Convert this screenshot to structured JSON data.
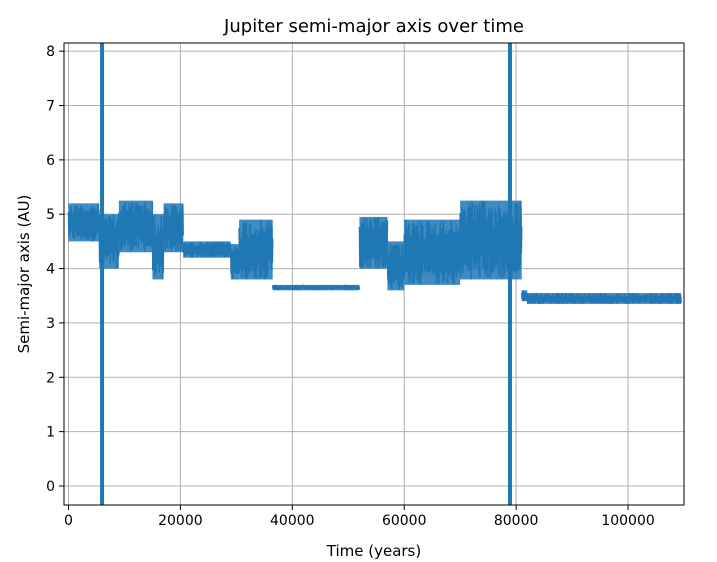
{
  "chart_data": {
    "type": "line",
    "title": "Jupiter semi-major axis over time",
    "xlabel": "Time (years)",
    "ylabel": "Semi-major axis (AU)",
    "xlim": [
      -800,
      110000
    ],
    "ylim": [
      -0.35,
      8.15
    ],
    "grid": true,
    "line_color": "#1f77b4",
    "xticks": [
      0,
      20000,
      40000,
      60000,
      80000,
      100000
    ],
    "yticks": [
      0,
      1,
      2,
      3,
      4,
      5,
      6,
      7,
      8
    ],
    "series": [
      {
        "name": "",
        "segments": [
          {
            "x0": 0,
            "x1": 5500,
            "low": 4.5,
            "high": 5.2
          },
          {
            "x0": 5500,
            "x1": 9000,
            "low": 4.0,
            "high": 5.0
          },
          {
            "x0": 9000,
            "x1": 15000,
            "low": 4.3,
            "high": 5.25
          },
          {
            "x0": 15000,
            "x1": 17000,
            "low": 3.8,
            "high": 5.0
          },
          {
            "x0": 17000,
            "x1": 20500,
            "low": 4.3,
            "high": 5.2
          },
          {
            "x0": 20500,
            "x1": 29000,
            "low": 4.2,
            "high": 4.5
          },
          {
            "x0": 29000,
            "x1": 30500,
            "low": 3.8,
            "high": 4.45
          },
          {
            "x0": 30500,
            "x1": 36500,
            "low": 3.8,
            "high": 4.9
          },
          {
            "x0": 36500,
            "x1": 52000,
            "low": 3.6,
            "high": 3.7
          },
          {
            "x0": 52000,
            "x1": 57000,
            "low": 4.0,
            "high": 4.95
          },
          {
            "x0": 57000,
            "x1": 60000,
            "low": 3.6,
            "high": 4.5
          },
          {
            "x0": 60000,
            "x1": 70000,
            "low": 3.7,
            "high": 4.9
          },
          {
            "x0": 70000,
            "x1": 81000,
            "low": 3.8,
            "high": 5.25
          },
          {
            "x0": 81000,
            "x1": 82000,
            "low": 3.4,
            "high": 3.6
          },
          {
            "x0": 82000,
            "x1": 109500,
            "low": 3.35,
            "high": 3.55
          }
        ],
        "spikes": [
          {
            "x": 6000,
            "low": -0.35,
            "high": 8.15
          },
          {
            "x": 78900,
            "low": -0.35,
            "high": 8.15
          }
        ]
      }
    ]
  }
}
